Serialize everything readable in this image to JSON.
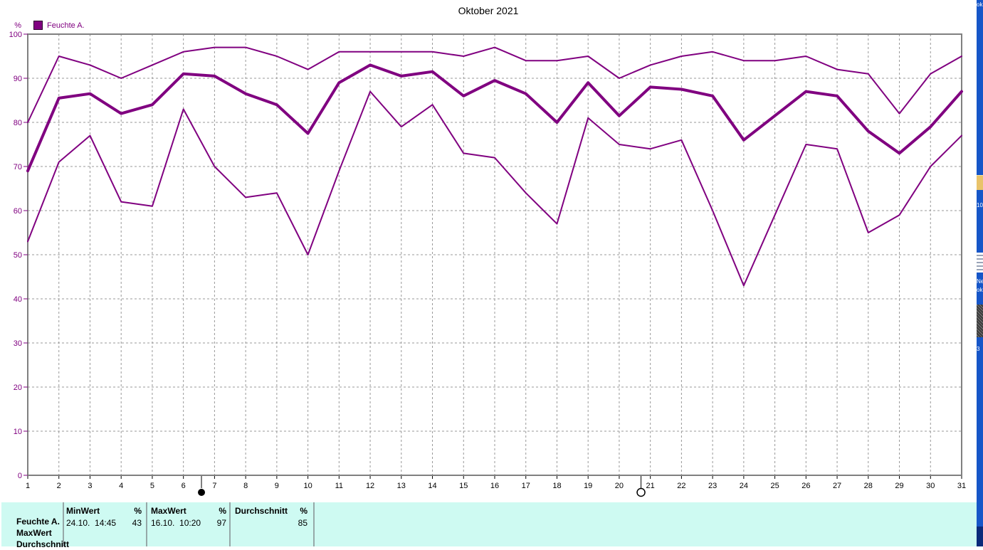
{
  "title": "Oktober 2021",
  "legend": {
    "label": "Feuchte A.",
    "color": "#800080"
  },
  "axes": {
    "y_unit": "%",
    "y_ticks": [
      0,
      10,
      20,
      30,
      40,
      50,
      60,
      70,
      80,
      90,
      100
    ],
    "y_min": 0,
    "y_max": 100,
    "days": 31,
    "y_label_color": "#800080",
    "x_label_color": "#000000"
  },
  "chart_data": {
    "type": "line",
    "title": "Oktober 2021",
    "xlabel": "",
    "ylabel": "%",
    "ylim": [
      0,
      100
    ],
    "grid": true,
    "line_color": "#800080",
    "x": [
      1,
      2,
      3,
      4,
      5,
      6,
      7,
      8,
      9,
      10,
      11,
      12,
      13,
      14,
      15,
      16,
      17,
      18,
      19,
      20,
      21,
      22,
      23,
      24,
      25,
      26,
      27,
      28,
      29,
      30,
      31
    ],
    "series": [
      {
        "name": "Feuchte A. MaxWert",
        "thick": false,
        "values": [
          80,
          95,
          93,
          90,
          93,
          96,
          97,
          97,
          95,
          92,
          96,
          96,
          96,
          96,
          95,
          97,
          94,
          94,
          95,
          90,
          93,
          95,
          96,
          94,
          94,
          95,
          92,
          91,
          82,
          91,
          95
        ]
      },
      {
        "name": "Feuchte A. Durchschnitt",
        "thick": true,
        "values": [
          69,
          85.5,
          86.5,
          82,
          84,
          91,
          90.5,
          86.5,
          84,
          77.5,
          89,
          93,
          90.5,
          91.5,
          86,
          89.5,
          86.5,
          80,
          89,
          81.5,
          88,
          87.5,
          86,
          76,
          81.5,
          87,
          86,
          78,
          73,
          79,
          87
        ]
      },
      {
        "name": "Feuchte A. MinWert",
        "thick": false,
        "values": [
          53,
          71,
          77,
          62,
          61,
          83,
          70,
          63,
          64,
          50,
          69,
          87,
          79,
          84,
          73,
          72,
          64,
          57,
          81,
          75,
          74,
          76,
          60,
          43,
          59,
          75,
          74,
          55,
          59,
          70,
          77
        ]
      }
    ],
    "annotations": [
      {
        "type": "new-moon",
        "symbol": "filled-circle",
        "day": 6.58
      },
      {
        "type": "full-moon",
        "symbol": "open-circle",
        "day": 20.7
      }
    ],
    "legend_position": "top-left"
  },
  "summary_table": {
    "bg": "#CEFAF2",
    "row_labels": [
      "Feuchte A.",
      "MaxWert",
      "Durchschnitt"
    ],
    "groups": [
      {
        "header": "MinWert",
        "unit": "%",
        "datetime": "24.10.  14:45",
        "value": "43"
      },
      {
        "header": "MaxWert",
        "unit": "%",
        "datetime": "16.10.  10:20",
        "value": "97"
      },
      {
        "header": "Durchschnitt",
        "unit": "%",
        "datetime": "",
        "value": "85"
      }
    ]
  },
  "desktop_strip": {
    "bg": "#1656C8",
    "top_fragment": "ok",
    "folder_label": "10",
    "doc_label_1": "Ne",
    "doc_label_2": "ok",
    "icon_label": "3"
  }
}
